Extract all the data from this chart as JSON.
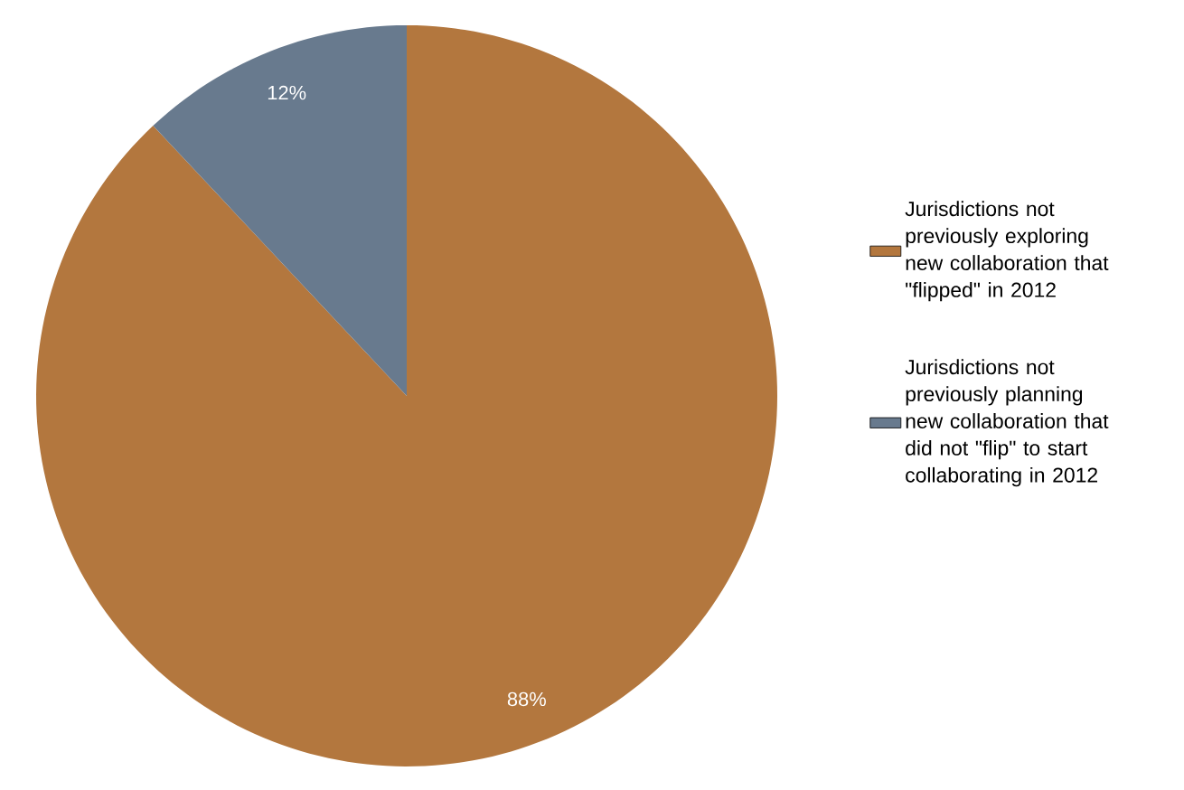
{
  "chart_data": {
    "type": "pie",
    "categories": [
      "Jurisdictions not previously exploring new collaboration that \"flipped\" in 2012",
      "Jurisdictions not previously planning new collaboration that did not \"flip\" to start collaborating in 2012"
    ],
    "values": [
      88,
      12
    ],
    "colors": [
      "#b3773e",
      "#687a8e"
    ],
    "value_labels": [
      "88%",
      "12%"
    ],
    "legend": "right"
  }
}
